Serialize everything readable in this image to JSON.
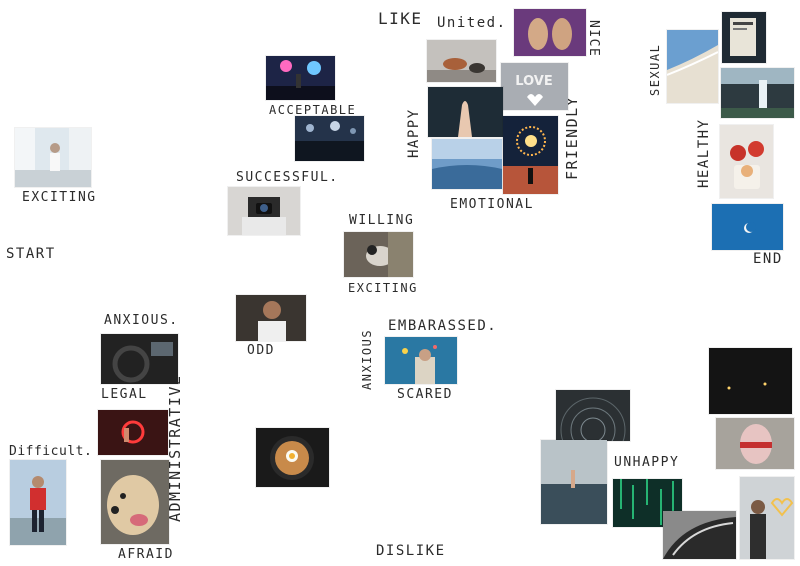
{
  "axis": {
    "start": "START",
    "end": "END",
    "like": "LIKE",
    "dislike": "DISLIKE"
  },
  "labels": {
    "exciting_1": "EXCITING",
    "acceptable": "ACCEPTABLE",
    "successful": "SUCCESSFUL.",
    "united": "United.",
    "nice": "NICE",
    "happy": "HAPPY",
    "friendly": "FRIENDLY",
    "emotional": "EMOTIONAL",
    "willing": "WILLING",
    "exciting_2": "EXCITING",
    "sexual": "SEXUAL",
    "healthy": "HEALTHY",
    "anxious_1": "ANXIOUS.",
    "administrative": "ADMINISTRATIVE",
    "legal": "LEGAL",
    "odd": "ODD",
    "anxious_2": "ANXIOUS",
    "embarassed": "EMBARASSED.",
    "scared": "SCARED",
    "difficult": "Difficult.",
    "afraid": "AFRAID",
    "unhappy": "UNHAPPY"
  },
  "photos": [
    {
      "name": "woman-window-photo"
    },
    {
      "name": "concert-photo"
    },
    {
      "name": "crowd-photo"
    },
    {
      "name": "camera-photographer-photo"
    },
    {
      "name": "dog-cat-photo"
    },
    {
      "name": "feet-photo"
    },
    {
      "name": "love-sign-photo"
    },
    {
      "name": "hand-photo"
    },
    {
      "name": "fireworks-photo"
    },
    {
      "name": "sea-mist-photo"
    },
    {
      "name": "bird-photo"
    },
    {
      "name": "ocean-aerial-photo"
    },
    {
      "name": "book-photo"
    },
    {
      "name": "waterfall-photo"
    },
    {
      "name": "apples-photo"
    },
    {
      "name": "moon-photo"
    },
    {
      "name": "smiling-man-photo"
    },
    {
      "name": "car-interior-photo"
    },
    {
      "name": "neon-hands-photo"
    },
    {
      "name": "happy-dog-photo"
    },
    {
      "name": "man-red-jacket-photo"
    },
    {
      "name": "ramen-bowl-photo"
    },
    {
      "name": "embarrassed-person-photo"
    },
    {
      "name": "star-trails-photo"
    },
    {
      "name": "dark-night-photo"
    },
    {
      "name": "drowning-hand-photo"
    },
    {
      "name": "painted-face-photo"
    },
    {
      "name": "matrix-code-photo"
    },
    {
      "name": "car-curve-photo"
    },
    {
      "name": "couple-heart-photo"
    }
  ]
}
